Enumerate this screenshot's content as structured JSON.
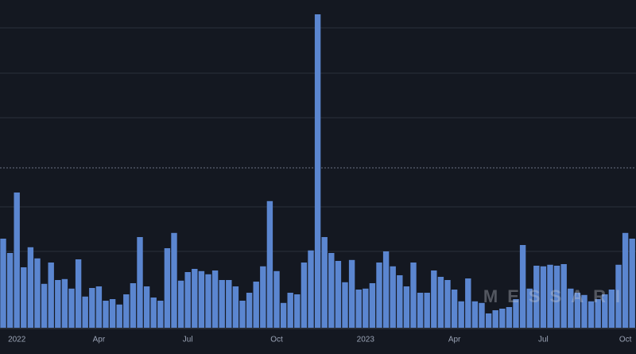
{
  "chart_data": {
    "type": "bar",
    "watermark": "MESSARI",
    "color": "#5b86d0",
    "categories": [
      null,
      null,
      "2022",
      null,
      null,
      null,
      null,
      null,
      null,
      null,
      null,
      null,
      null,
      null,
      "Apr",
      null,
      null,
      null,
      null,
      null,
      null,
      null,
      null,
      null,
      null,
      null,
      null,
      "Jul",
      null,
      null,
      null,
      null,
      null,
      null,
      null,
      null,
      null,
      null,
      null,
      null,
      "Oct",
      null,
      null,
      null,
      null,
      null,
      null,
      null,
      null,
      null,
      null,
      null,
      null,
      "2023",
      null,
      null,
      null,
      null,
      null,
      null,
      null,
      null,
      null,
      null,
      null,
      null,
      "Apr",
      null,
      null,
      null,
      null,
      null,
      null,
      null,
      null,
      null,
      null,
      null,
      null,
      "Jul",
      null,
      null,
      null,
      null,
      null,
      null,
      null,
      null,
      null,
      null,
      null,
      "Oct",
      null
    ],
    "values": [
      28,
      23.5,
      42.5,
      19,
      25.3,
      21.8,
      13.8,
      20.5,
      15,
      15.3,
      12.3,
      21.5,
      9.8,
      12.5,
      13,
      8.5,
      9,
      7.3,
      10.5,
      14,
      28.5,
      13,
      9.5,
      8.5,
      25,
      29.8,
      14.8,
      17.5,
      18.5,
      17.8,
      16.8,
      18,
      15,
      15,
      13,
      8.5,
      11,
      14.5,
      19.3,
      39.8,
      17.8,
      7.8,
      11,
      10.5,
      20.5,
      24.3,
      98.5,
      28.5,
      23.5,
      21,
      14.3,
      21.3,
      12,
      12.3,
      14,
      20.5,
      24,
      19.3,
      16.5,
      13,
      20.5,
      11,
      11,
      18,
      16,
      15,
      12,
      8.3,
      15.5,
      8.3,
      7.8,
      4.5,
      5.5,
      6,
      6.5,
      9,
      26,
      12.3,
      19.5,
      19.3,
      19.8,
      19.5,
      20,
      12.3,
      11,
      10.3,
      8.3,
      9,
      10.5,
      12,
      19.8,
      29.8,
      28
    ],
    "ylim": [
      0,
      100
    ]
  }
}
